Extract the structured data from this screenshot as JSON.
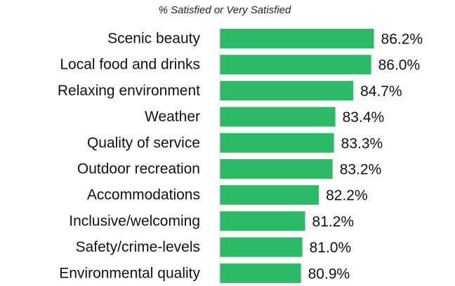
{
  "chart_data": {
    "type": "barh",
    "title": "% Satisfied or Very Satisfied",
    "categories": [
      "Scenic beauty",
      "Local food and drinks",
      "Relaxing environment",
      "Weather",
      "Quality of service",
      "Outdoor recreation",
      "Accommodations",
      "Inclusive/welcoming",
      "Safety/crime-levels",
      "Environmental quality"
    ],
    "values": [
      86.2,
      86.0,
      84.7,
      83.4,
      83.3,
      83.2,
      82.2,
      81.2,
      81.0,
      80.9
    ],
    "value_labels": [
      "86.2%",
      "86.0%",
      "84.7%",
      "83.4%",
      "83.3%",
      "83.2%",
      "82.2%",
      "81.2%",
      "81.0%",
      "80.9%"
    ],
    "color": "#2dba66",
    "xlim": [
      75,
      90
    ]
  }
}
